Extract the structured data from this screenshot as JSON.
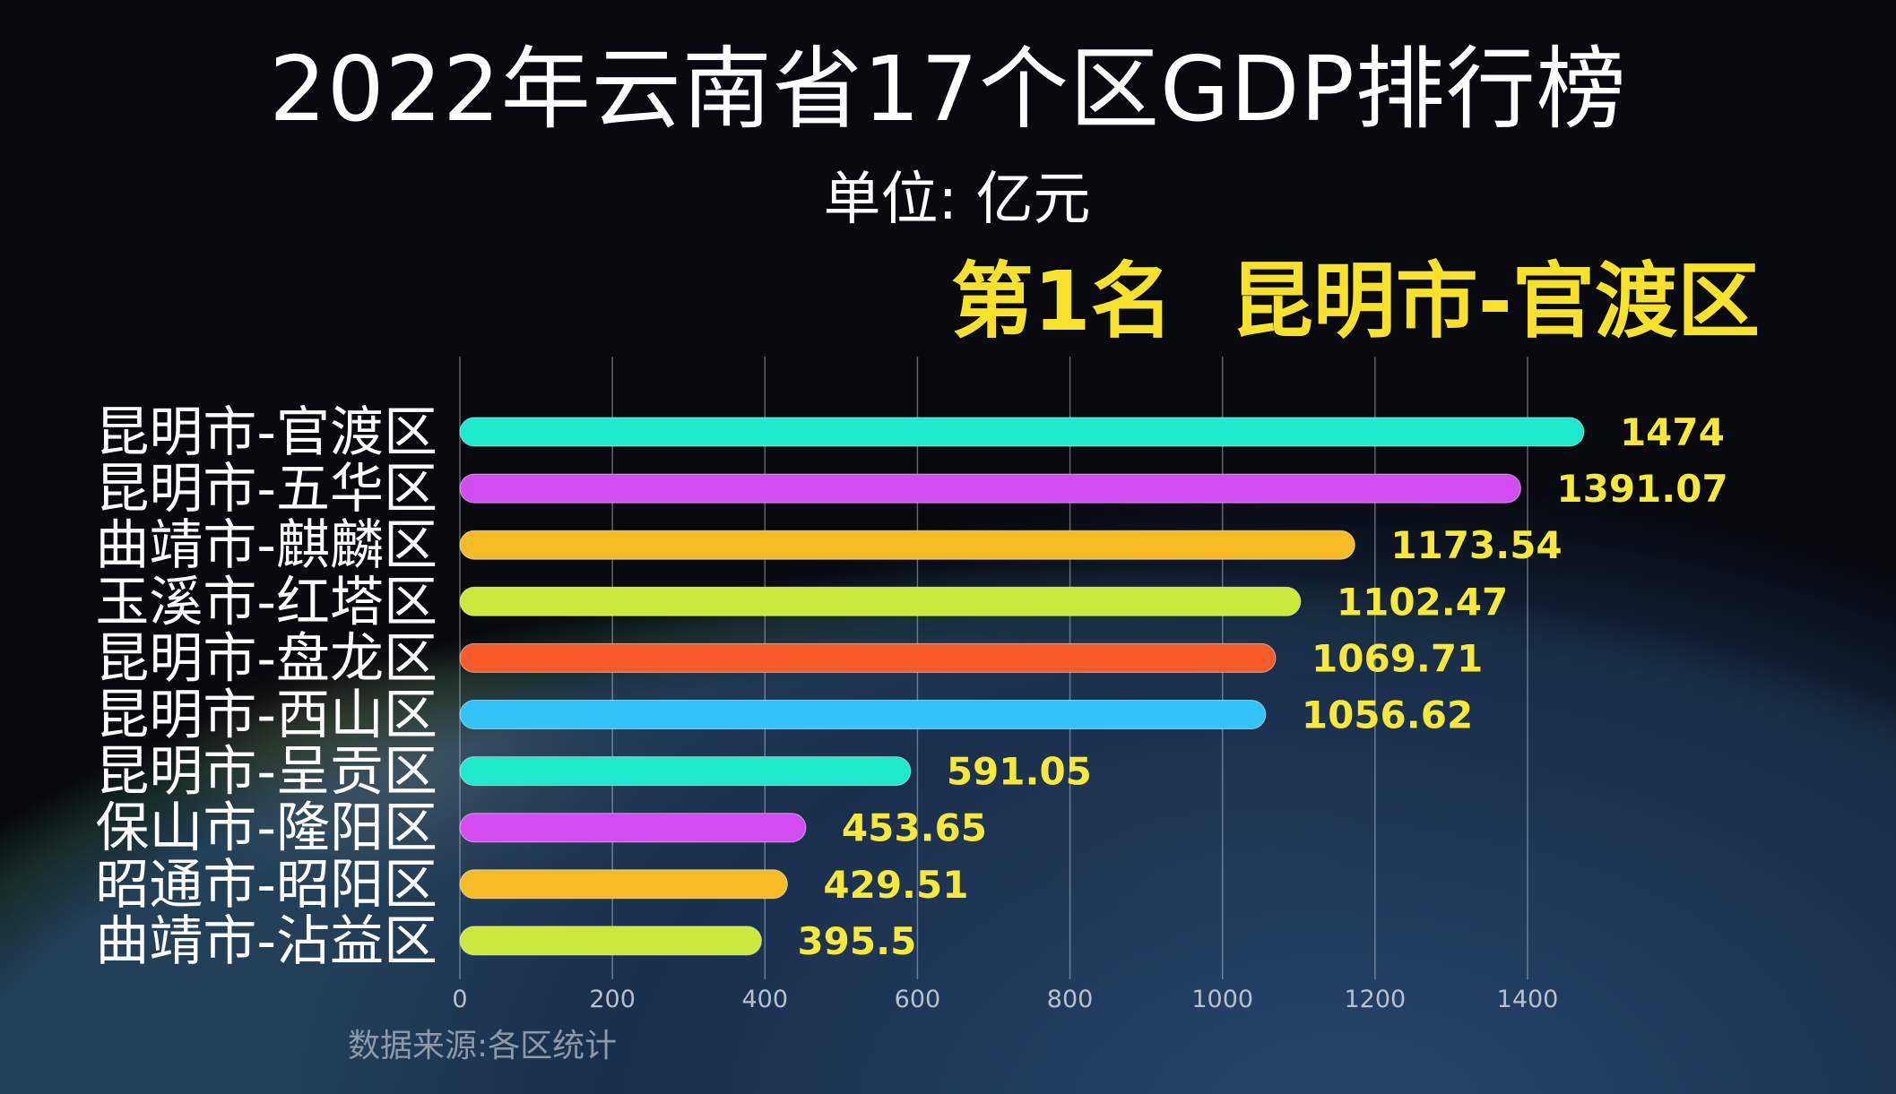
{
  "title": "2022年云南省17个区GDP排行榜",
  "unit_label": "单位: 亿元",
  "leader_label": "第1名  昆明市-官渡区",
  "source": "数据来源:各区统计",
  "chart_data": {
    "type": "bar",
    "orientation": "horizontal",
    "categories": [
      "昆明市-官渡区",
      "昆明市-五华区",
      "曲靖市-麒麟区",
      "玉溪市-红塔区",
      "昆明市-盘龙区",
      "昆明市-西山区",
      "昆明市-呈贡区",
      "保山市-隆阳区",
      "昭通市-昭阳区",
      "曲靖市-沾益区"
    ],
    "values": [
      1474,
      1391.07,
      1173.54,
      1102.47,
      1069.71,
      1056.62,
      591.05,
      453.65,
      429.51,
      395.5
    ],
    "value_labels": [
      "1474",
      "1391.07",
      "1173.54",
      "1102.47",
      "1069.71",
      "1056.62",
      "591.05",
      "453.65",
      "429.51",
      "395.5"
    ],
    "colors": [
      "#1de9cc",
      "#d24cf2",
      "#f7bb25",
      "#cbe83c",
      "#f85a2a",
      "#34c3f6",
      "#1de9cc",
      "#d24cf2",
      "#f7bb25",
      "#cbe83c"
    ],
    "value_label_color": "#f7e83a",
    "xlim": [
      0,
      1400
    ],
    "xticks": [
      "0",
      "200",
      "400",
      "600",
      "800",
      "1000",
      "1200",
      "1400"
    ],
    "grid": true,
    "title": "2022年云南省17个区GDP排行榜",
    "xlabel": "",
    "ylabel": ""
  }
}
